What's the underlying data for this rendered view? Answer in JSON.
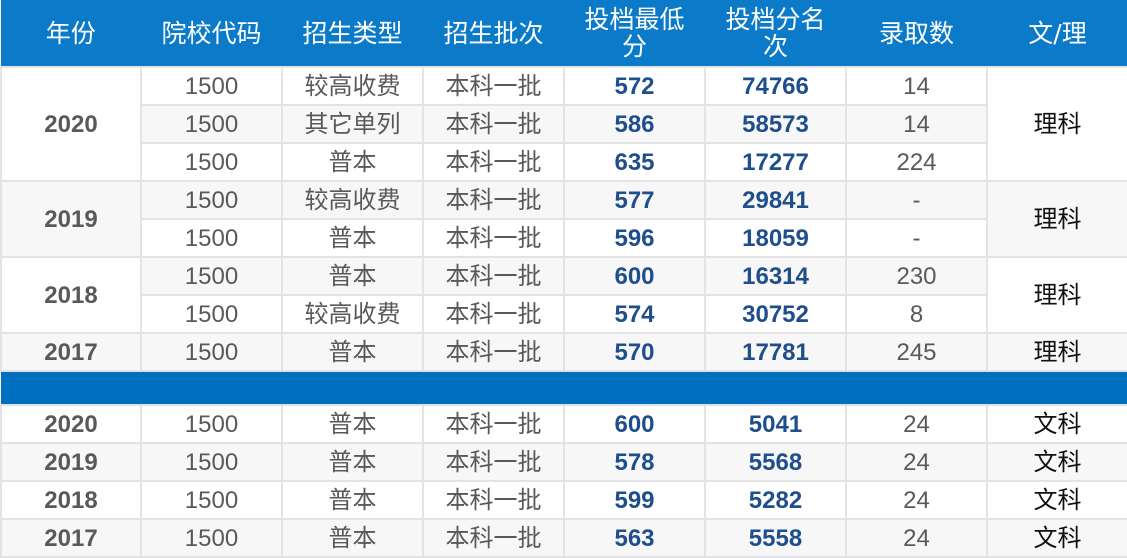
{
  "headers": [
    "年份",
    "院校代码",
    "招生类型",
    "招生批次",
    "投档最低分",
    "投档分名次",
    "录取数",
    "文/理"
  ],
  "colors": {
    "header": "#0a7ac9",
    "separator": "#0070c0",
    "score": "#1f4e8c"
  },
  "science": [
    {
      "year": "2020",
      "track": "理科",
      "rows": [
        {
          "code": "1500",
          "type": "较高收费",
          "batch": "本科一批",
          "min_score": "572",
          "rank": "74766",
          "admitted": "14"
        },
        {
          "code": "1500",
          "type": "其它单列",
          "batch": "本科一批",
          "min_score": "586",
          "rank": "58573",
          "admitted": "14"
        },
        {
          "code": "1500",
          "type": "普本",
          "batch": "本科一批",
          "min_score": "635",
          "rank": "17277",
          "admitted": "224"
        }
      ]
    },
    {
      "year": "2019",
      "track": "理科",
      "rows": [
        {
          "code": "1500",
          "type": "较高收费",
          "batch": "本科一批",
          "min_score": "577",
          "rank": "29841",
          "admitted": "-"
        },
        {
          "code": "1500",
          "type": "普本",
          "batch": "本科一批",
          "min_score": "596",
          "rank": "18059",
          "admitted": "-"
        }
      ]
    },
    {
      "year": "2018",
      "track": "理科",
      "rows": [
        {
          "code": "1500",
          "type": "普本",
          "batch": "本科一批",
          "min_score": "600",
          "rank": "16314",
          "admitted": "230"
        },
        {
          "code": "1500",
          "type": "较高收费",
          "batch": "本科一批",
          "min_score": "574",
          "rank": "30752",
          "admitted": "8"
        }
      ]
    },
    {
      "year": "2017",
      "track": "理科",
      "rows": [
        {
          "code": "1500",
          "type": "普本",
          "batch": "本科一批",
          "min_score": "570",
          "rank": "17781",
          "admitted": "245"
        }
      ]
    }
  ],
  "arts": [
    {
      "year": "2020",
      "track": "文科",
      "rows": [
        {
          "code": "1500",
          "type": "普本",
          "batch": "本科一批",
          "min_score": "600",
          "rank": "5041",
          "admitted": "24"
        }
      ]
    },
    {
      "year": "2019",
      "track": "文科",
      "rows": [
        {
          "code": "1500",
          "type": "普本",
          "batch": "本科一批",
          "min_score": "578",
          "rank": "5568",
          "admitted": "24"
        }
      ]
    },
    {
      "year": "2018",
      "track": "文科",
      "rows": [
        {
          "code": "1500",
          "type": "普本",
          "batch": "本科一批",
          "min_score": "599",
          "rank": "5282",
          "admitted": "24"
        }
      ]
    },
    {
      "year": "2017",
      "track": "文科",
      "rows": [
        {
          "code": "1500",
          "type": "普本",
          "batch": "本科一批",
          "min_score": "563",
          "rank": "5558",
          "admitted": "24"
        }
      ]
    }
  ]
}
